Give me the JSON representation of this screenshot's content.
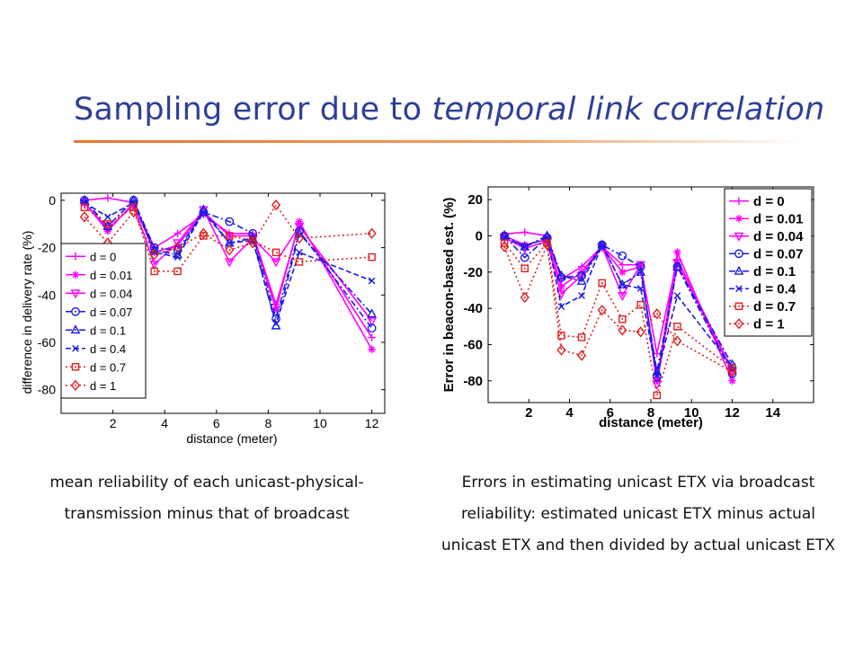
{
  "slide": {
    "title_plain": "Sampling error due to ",
    "title_emph": "temporal link correlation",
    "accent_color": "#2e3f98",
    "rule_color": "#e8772e"
  },
  "captions": {
    "left": [
      "mean reliability of each unicast-physical-",
      "transmission minus that of broadcast"
    ],
    "right": [
      "Errors in estimating unicast ETX via broadcast",
      "reliability: estimated unicast ETX minus actual",
      "unicast ETX and then divided by actual unicast ETX"
    ]
  },
  "chart_data": [
    {
      "type": "line",
      "xlabel": "distance (meter)",
      "ylabel": "difference in delivery rate (%)",
      "xlim": [
        0,
        12.5
      ],
      "ylim": [
        -90,
        3
      ],
      "xticks": [
        2,
        4,
        6,
        8,
        10,
        12
      ],
      "yticks": [
        0,
        -20,
        -40,
        -60,
        -80
      ],
      "legend_position": "left",
      "grid": false,
      "x": [
        0.9,
        1.8,
        2.8,
        3.6,
        4.5,
        5.5,
        6.5,
        7.4,
        8.3,
        9.2,
        12
      ],
      "series": [
        {
          "name": "d = 0",
          "color": "#ff00ff",
          "marker": "plus",
          "dash": "solid",
          "values": [
            0,
            1,
            -1,
            -20,
            -14,
            -6,
            -14,
            -14,
            -44,
            -10,
            -58
          ]
        },
        {
          "name": "d = 0.01",
          "color": "#ff00ff",
          "marker": "star",
          "dash": "solid",
          "values": [
            -1,
            -13,
            -1,
            -22,
            -19,
            -5,
            -15,
            -15,
            -46,
            -9,
            -63
          ]
        },
        {
          "name": "d = 0.04",
          "color": "#ff00ff",
          "marker": "tridown",
          "dash": "solid",
          "values": [
            -1,
            -12,
            -2,
            -27,
            -18,
            -4,
            -26,
            -16,
            -26,
            -11,
            -51
          ]
        },
        {
          "name": "d = 0.07",
          "color": "#1a1ae6",
          "marker": "circle",
          "dash": "dashdot",
          "values": [
            0,
            -11,
            0,
            -20,
            -21,
            -5,
            -9,
            -14,
            -50,
            -13,
            -54
          ]
        },
        {
          "name": "d = 0.1",
          "color": "#1a1ae6",
          "marker": "triangle",
          "dash": "dashdot",
          "values": [
            0,
            -11,
            0,
            -21,
            -23,
            -4,
            -18,
            -16,
            -53,
            -14,
            -48
          ]
        },
        {
          "name": "d = 0.4",
          "color": "#1a1ae6",
          "marker": "x",
          "dash": "dash",
          "values": [
            -1,
            -7,
            -1,
            -22,
            -24,
            -5,
            -18,
            -17,
            -52,
            -22,
            -34
          ]
        },
        {
          "name": "d = 0.7",
          "color": "#e02020",
          "marker": "square",
          "dash": "dot",
          "values": [
            -3,
            -10,
            -3,
            -30,
            -30,
            -15,
            -15,
            -17,
            -22,
            -26,
            -24
          ]
        },
        {
          "name": "d = 1",
          "color": "#e02020",
          "marker": "diamond",
          "dash": "dot",
          "values": [
            -7,
            -18,
            -5,
            -23,
            -20,
            -14,
            -21,
            -18,
            -2,
            -16,
            -14
          ]
        }
      ]
    },
    {
      "type": "line",
      "xlabel": "distance (meter)",
      "ylabel": "Error in beacon-based est. (%)",
      "xlim": [
        0,
        16
      ],
      "ylim": [
        -92,
        27
      ],
      "xticks": [
        2,
        4,
        6,
        8,
        10,
        12,
        14
      ],
      "yticks": [
        20,
        0,
        -20,
        -40,
        -60,
        -80
      ],
      "legend_position": "top-right",
      "grid": false,
      "x": [
        0.8,
        1.8,
        2.9,
        3.6,
        4.6,
        5.6,
        6.6,
        7.5,
        8.3,
        9.3,
        12
      ],
      "series": [
        {
          "name": "d = 0",
          "color": "#ff00ff",
          "marker": "plus",
          "dash": "solid",
          "values": [
            1,
            2,
            0,
            -24,
            -17,
            -6,
            -16,
            -16,
            -65,
            -13,
            -74
          ]
        },
        {
          "name": "d = 0.01",
          "color": "#ff00ff",
          "marker": "star",
          "dash": "solid",
          "values": [
            0,
            -5,
            -2,
            -28,
            -20,
            -6,
            -20,
            -17,
            -80,
            -9,
            -80
          ]
        },
        {
          "name": "d = 0.04",
          "color": "#ff00ff",
          "marker": "tridown",
          "dash": "solid",
          "values": [
            -1,
            -7,
            -3,
            -32,
            -22,
            -6,
            -33,
            -16,
            -82,
            -15,
            -75
          ]
        },
        {
          "name": "d = 0.07",
          "color": "#1a1ae6",
          "marker": "circle",
          "dash": "dashdot",
          "values": [
            0,
            -12,
            -1,
            -23,
            -22,
            -5,
            -11,
            -17,
            -78,
            -17,
            -76
          ]
        },
        {
          "name": "d = 0.1",
          "color": "#1a1ae6",
          "marker": "triangle",
          "dash": "dashdot",
          "values": [
            0,
            -6,
            0,
            -22,
            -25,
            -5,
            -27,
            -20,
            -75,
            -17,
            -71
          ]
        },
        {
          "name": "d = 0.4",
          "color": "#1a1ae6",
          "marker": "x",
          "dash": "dash",
          "values": [
            -1,
            -6,
            -1,
            -39,
            -33,
            -5,
            -27,
            -29,
            -77,
            -33,
            -72
          ]
        },
        {
          "name": "d = 0.7",
          "color": "#e02020",
          "marker": "square",
          "dash": "dot",
          "values": [
            -4,
            -18,
            -4,
            -55,
            -56,
            -26,
            -46,
            -38,
            -88,
            -50,
            -73
          ]
        },
        {
          "name": "d = 1",
          "color": "#e02020",
          "marker": "diamond",
          "dash": "dot",
          "values": [
            -6,
            -34,
            -5,
            -63,
            -66,
            -41,
            -52,
            -53,
            -43,
            -58,
            -75
          ]
        }
      ]
    }
  ]
}
